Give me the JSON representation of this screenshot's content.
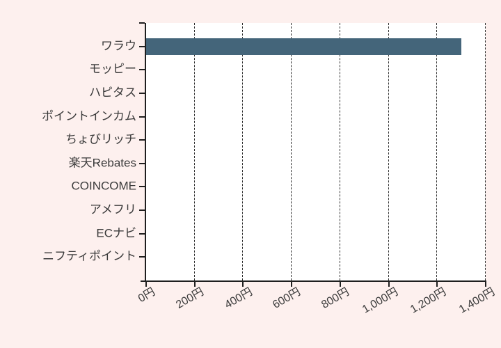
{
  "page": {
    "background_color": "#fdf0ee"
  },
  "chart_data": {
    "type": "bar",
    "orientation": "horizontal",
    "title": "",
    "unit": "円",
    "categories": [
      "ワラウ",
      "モッピー",
      "ハピタス",
      "ポイントインカム",
      "ちょびリッチ",
      "楽天Rebates",
      "COINCOME",
      "アメフリ",
      "ECナビ",
      "ニフティポイント"
    ],
    "values": [
      1300,
      0,
      0,
      0,
      0,
      0,
      0,
      0,
      0,
      0
    ],
    "xlim": [
      0,
      1400
    ],
    "x_tick_values": [
      0,
      200,
      400,
      600,
      800,
      1000,
      1200,
      1400
    ],
    "x_tick_labels": [
      "0円",
      "200円",
      "400円",
      "600円",
      "800円",
      "1,000円",
      "1,200円",
      "1,400円"
    ],
    "grid": "vertical-dashed",
    "legend": "none",
    "colors": {
      "bar": "#44657a",
      "plot_background": "#ffffff",
      "page_background": "#fdf0ee",
      "axis": "#1f1f1f",
      "gridline": "#2e2e2e",
      "label": "#3a3a3a"
    }
  }
}
